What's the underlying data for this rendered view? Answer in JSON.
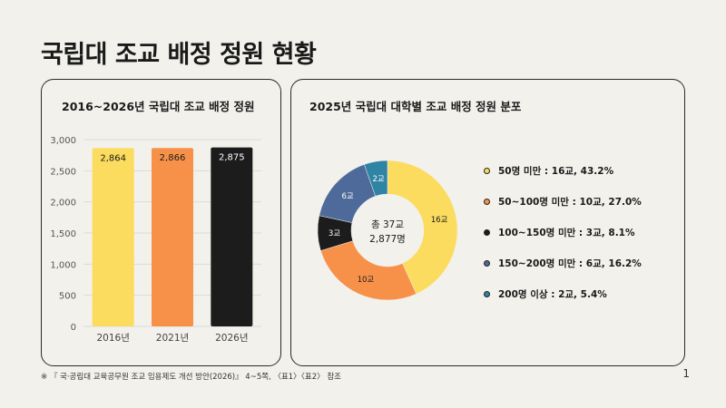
{
  "page_title": "국립대 조교 배정 정원 현황",
  "footnote": "※ 『 국·공립대 교육공무원 조교 임용제도 개선 방안(2026)』 4~5쪽, 〈표1〉〈표2〉 참조",
  "page_number": "1",
  "colors": {
    "yellow": "#fbdc5e",
    "orange": "#f7914a",
    "black": "#1c1c1c",
    "slate": "#4e6a9a",
    "teal": "#2f84a6"
  },
  "chart_data": [
    {
      "type": "bar",
      "title": "2016~2026년 국립대 조교 배정 정원",
      "categories": [
        "2016년",
        "2021년",
        "2026년"
      ],
      "values": [
        2864,
        2866,
        2875
      ],
      "value_labels": [
        "2,864",
        "2,866",
        "2,875"
      ],
      "bar_colors": [
        "#fbdc5e",
        "#f7914a",
        "#1c1c1c"
      ],
      "ylim": [
        0,
        3000
      ],
      "yticks": [
        0,
        500,
        1000,
        1500,
        2000,
        2500,
        3000
      ],
      "ytick_labels": [
        "0",
        "500",
        "1,000",
        "1,500",
        "2,000",
        "2,500",
        "3,000"
      ],
      "grid": true
    },
    {
      "type": "pie",
      "title": "2025년 국립대 대학별 조교 배정 정원 분포",
      "center_label_1": "총 37교",
      "center_label_2": "2,877명",
      "slices": [
        {
          "value": 16,
          "label": "16교",
          "legend": "50명 미만 : 16교, 43.2%",
          "color": "#fbdc5e"
        },
        {
          "value": 10,
          "label": "10교",
          "legend": "50~100명 미만 : 10교, 27.0%",
          "color": "#f7914a"
        },
        {
          "value": 3,
          "label": "3교",
          "legend": "100~150명 미만 : 3교, 8.1%",
          "color": "#1c1c1c"
        },
        {
          "value": 6,
          "label": "6교",
          "legend": "150~200명 미만 : 6교, 16.2%",
          "color": "#4e6a9a"
        },
        {
          "value": 2,
          "label": "2교",
          "legend": "200명 이상 : 2교, 5.4%",
          "color": "#2f84a6"
        }
      ],
      "legend_position": "right"
    }
  ]
}
